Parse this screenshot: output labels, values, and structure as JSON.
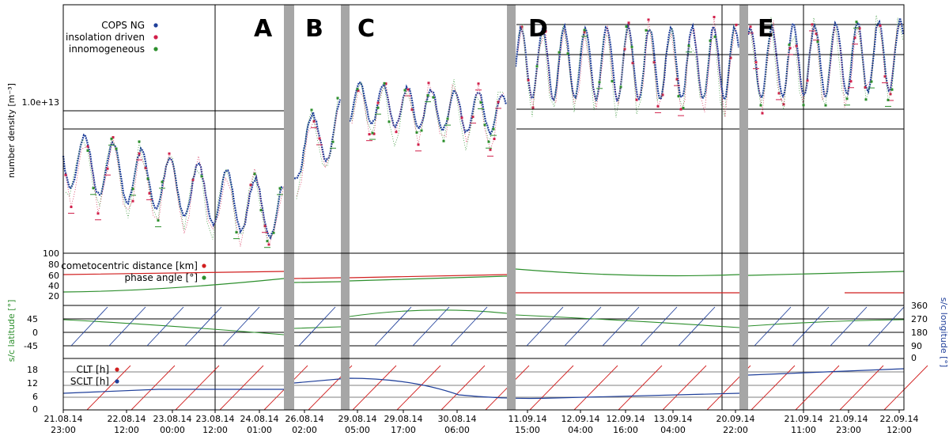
{
  "chart_data": [
    {
      "type": "scatter",
      "panel": "density",
      "ylabel": "number density [m⁻³]",
      "y_tick_labels": [
        "1.0e+13",
        "100"
      ],
      "regions": [
        "A",
        "B",
        "C",
        "D",
        "E"
      ],
      "series": [
        {
          "name": "COPS NG",
          "color": "#1f3f9a"
        },
        {
          "name": "insolation driven",
          "color": "#d11f4a"
        },
        {
          "name": "innomogeneous",
          "color": "#2d8f2d"
        }
      ]
    },
    {
      "type": "line",
      "panel": "distance-phase",
      "y_tick_labels": [
        "100",
        "80",
        "60",
        "40",
        "20"
      ],
      "series": [
        {
          "name": "cometocentric distance [km]",
          "color": "#d11f1f"
        },
        {
          "name": "phase angle [°]",
          "color": "#2d8f2d"
        }
      ]
    },
    {
      "type": "line",
      "panel": "lat-lon",
      "ylabel": "s/c latitude [°]",
      "ylabel_right": "s/c longitude [°]",
      "y_tick_labels": [
        "45",
        "0",
        "-45"
      ],
      "y_tick_labels_right": [
        "360",
        "270",
        "180",
        "90",
        "0"
      ],
      "series_colors": {
        "latitude": "#2d8f2d",
        "longitude": "#1f3f9a"
      }
    },
    {
      "type": "line",
      "panel": "local-time",
      "y_tick_labels": [
        "18",
        "12",
        "6",
        "0"
      ],
      "series": [
        {
          "name": "CLT [h]",
          "color": "#d11f1f"
        },
        {
          "name": "SCLT [h]",
          "color": "#1f3f9a"
        }
      ]
    }
  ],
  "x_ticks": [
    {
      "date": "21.08.14",
      "time": "23:00"
    },
    {
      "date": "22.08.14",
      "time": "12:00"
    },
    {
      "date": "23.08.14",
      "time": "00:00"
    },
    {
      "date": "23.08.14",
      "time": "12:00"
    },
    {
      "date": "24.08.14",
      "time": "01:00"
    },
    {
      "date": "26.08.14",
      "time": "02:00"
    },
    {
      "date": "29.08.14",
      "time": "05:00"
    },
    {
      "date": "29.08.14",
      "time": "17:00"
    },
    {
      "date": "30.08.14",
      "time": "06:00"
    },
    {
      "date": "11.09.14",
      "time": "15:00"
    },
    {
      "date": "12.09.14",
      "time": "04:00"
    },
    {
      "date": "12.09.14",
      "time": "16:00"
    },
    {
      "date": "13.09.14",
      "time": "04:00"
    },
    {
      "date": "20.09.14",
      "time": "22:00"
    },
    {
      "date": "21.09.14",
      "time": "11:00"
    },
    {
      "date": "21.09.14",
      "time": "23:00"
    },
    {
      "date": "22.09.14",
      "time": "12:00"
    }
  ]
}
